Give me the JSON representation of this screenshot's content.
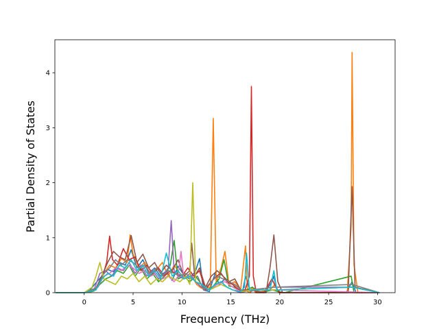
{
  "chart_data": {
    "type": "line",
    "title": "",
    "xlabel": "Frequency (THz)",
    "ylabel": "Partial Density of States",
    "xlim": [
      -3.0,
      31.8
    ],
    "ylim": [
      0,
      4.6
    ],
    "xticks": [
      0,
      5,
      10,
      15,
      20,
      25,
      30
    ],
    "yticks": [
      0,
      1,
      2,
      3,
      4
    ],
    "grid": false,
    "legend": "none",
    "colors": [
      "#1f77b4",
      "#ff7f0e",
      "#2ca02c",
      "#d62728",
      "#9467bd",
      "#8c564b",
      "#e377c2",
      "#7f7f7f",
      "#bcbd22",
      "#17becf"
    ],
    "series": [
      {
        "x": [
          -2.9,
          0.0,
          0.6,
          1.2,
          1.8,
          2.4,
          3.0,
          3.6,
          4.2,
          4.8,
          5.4,
          6.0,
          6.6,
          7.2,
          7.8,
          8.4,
          9.0,
          9.6,
          10.2,
          10.8,
          11.4,
          11.8,
          12.2,
          12.8,
          13.1,
          13.4,
          13.8,
          14.4,
          15.0,
          15.6,
          16.2,
          16.5,
          17.0,
          17.3,
          17.6,
          18.5,
          19.2,
          19.4,
          19.7,
          20.2,
          26.8,
          27.4,
          27.8,
          30.2
        ],
        "y": [
          0,
          0,
          0.05,
          0.18,
          0.3,
          0.42,
          0.38,
          0.55,
          0.5,
          0.78,
          0.45,
          0.6,
          0.35,
          0.45,
          0.3,
          0.4,
          0.22,
          0.48,
          0.32,
          0.25,
          0.4,
          0.62,
          0.05,
          0.02,
          0.2,
          0.35,
          0.15,
          0.25,
          0.18,
          0.08,
          0.02,
          0.3,
          0.01,
          0.05,
          0.01,
          0.0,
          0.2,
          0.3,
          0.05,
          0,
          0,
          0.2,
          0,
          0
        ]
      },
      {
        "x": [
          -2.9,
          0.0,
          0.8,
          1.4,
          2.0,
          2.6,
          3.2,
          3.8,
          4.4,
          4.7,
          5.0,
          5.6,
          6.2,
          6.8,
          7.4,
          8.0,
          8.6,
          9.2,
          9.8,
          10.4,
          11.0,
          11.5,
          12.0,
          12.9,
          13.2,
          13.5,
          14.0,
          14.4,
          14.8,
          15.4,
          16.0,
          16.5,
          16.7,
          17.0,
          17.2,
          17.5,
          19.0,
          19.5,
          19.9,
          26.9,
          27.3,
          27.4,
          27.6,
          28.0,
          30.2
        ],
        "y": [
          0,
          0,
          0.02,
          0.12,
          0.35,
          0.5,
          0.45,
          0.62,
          0.55,
          1.05,
          0.7,
          0.45,
          0.55,
          0.3,
          0.42,
          0.55,
          0.3,
          0.5,
          0.35,
          0.28,
          0.3,
          0.15,
          0.08,
          0.1,
          3.17,
          0.2,
          0.45,
          0.75,
          0.15,
          0.2,
          0.05,
          0.85,
          0.02,
          0.0,
          0.1,
          0.0,
          0.05,
          0.15,
          0.0,
          0,
          1.2,
          4.37,
          0.5,
          0,
          0
        ]
      },
      {
        "x": [
          -2.9,
          0.0,
          1.0,
          1.6,
          2.2,
          2.8,
          3.4,
          4.0,
          4.6,
          5.2,
          5.8,
          6.4,
          7.0,
          7.6,
          8.2,
          8.8,
          9.2,
          9.6,
          10.2,
          10.8,
          11.4,
          12.0,
          12.6,
          13.2,
          13.8,
          14.3,
          14.8,
          15.4,
          16.0,
          16.6,
          17.2,
          18.0,
          19.3,
          19.8,
          20.5,
          27.3,
          27.6,
          30.2
        ],
        "y": [
          0,
          0,
          0.03,
          0.15,
          0.25,
          0.3,
          0.4,
          0.35,
          0.5,
          0.3,
          0.45,
          0.25,
          0.35,
          0.2,
          0.3,
          0.5,
          0.95,
          0.25,
          0.3,
          0.2,
          0.3,
          0.15,
          0.05,
          0.12,
          0.25,
          0.6,
          0.12,
          0.1,
          0.02,
          0.05,
          0.1,
          0.0,
          0.05,
          0.02,
          0,
          0.3,
          0,
          0
        ]
      },
      {
        "x": [
          -2.9,
          0.0,
          1.2,
          1.8,
          2.3,
          2.6,
          2.9,
          3.4,
          4.0,
          4.6,
          5.2,
          5.8,
          6.4,
          7.0,
          7.6,
          8.2,
          8.8,
          9.4,
          10.0,
          10.6,
          11.2,
          11.8,
          12.4,
          13.0,
          13.5,
          14.0,
          14.6,
          15.2,
          15.8,
          16.4,
          16.9,
          17.1,
          17.3,
          17.6,
          18.4,
          19.2,
          19.6,
          20.0,
          27.2,
          27.6,
          30.2
        ],
        "y": [
          0,
          0,
          0.05,
          0.25,
          0.55,
          1.03,
          0.6,
          0.5,
          0.8,
          0.6,
          0.65,
          0.4,
          0.5,
          0.35,
          0.45,
          0.3,
          0.4,
          0.35,
          0.3,
          0.45,
          0.3,
          0.4,
          0.05,
          0.2,
          0.3,
          0.35,
          0.2,
          0.15,
          0.05,
          0.02,
          0.3,
          3.75,
          0.3,
          0.0,
          0.0,
          0.25,
          0.1,
          0,
          0,
          0,
          0
        ]
      },
      {
        "x": [
          -2.9,
          0.0,
          1.0,
          1.6,
          2.2,
          2.8,
          3.4,
          4.0,
          4.6,
          5.2,
          5.8,
          6.4,
          7.0,
          7.6,
          8.2,
          8.6,
          8.9,
          9.2,
          9.6,
          10.2,
          10.8,
          11.4,
          12.0,
          12.8,
          13.4,
          14.0,
          14.6,
          15.2,
          16.0,
          17.0,
          19.5,
          27.4,
          30.2
        ],
        "y": [
          0,
          0,
          0.05,
          0.35,
          0.4,
          0.3,
          0.45,
          0.4,
          0.55,
          0.35,
          0.5,
          0.3,
          0.4,
          0.25,
          0.35,
          0.45,
          1.31,
          0.4,
          0.3,
          0.25,
          0.35,
          0.2,
          0.1,
          0.05,
          0.15,
          0.2,
          0.1,
          0.05,
          0.0,
          0.05,
          0.1,
          0.1,
          0
        ]
      },
      {
        "x": [
          -2.9,
          0.0,
          1.2,
          1.8,
          2.4,
          3.0,
          3.6,
          4.2,
          4.8,
          5.4,
          6.0,
          6.6,
          7.2,
          7.8,
          8.4,
          9.0,
          9.6,
          10.2,
          10.8,
          11.0,
          11.3,
          11.8,
          12.4,
          13.0,
          13.6,
          14.2,
          14.8,
          15.4,
          16.0,
          17.0,
          18.6,
          19.0,
          19.4,
          19.8,
          20.3,
          27.0,
          27.4,
          27.7,
          30.2
        ],
        "y": [
          0,
          0,
          0.08,
          0.3,
          0.55,
          0.75,
          0.65,
          0.6,
          1.04,
          0.55,
          0.7,
          0.45,
          0.55,
          0.35,
          0.5,
          0.4,
          0.6,
          0.3,
          0.4,
          0.9,
          0.3,
          0.45,
          0.1,
          0.3,
          0.4,
          0.3,
          0.2,
          0.25,
          0.05,
          0.05,
          0.0,
          0.45,
          1.05,
          0.2,
          0,
          0,
          1.93,
          0.1,
          0
        ]
      },
      {
        "x": [
          -2.9,
          0.0,
          1.4,
          2.0,
          2.6,
          3.2,
          3.8,
          4.4,
          5.0,
          5.6,
          6.2,
          6.8,
          7.4,
          8.0,
          8.6,
          9.2,
          9.6,
          9.9,
          10.2,
          10.8,
          11.4,
          12.0,
          12.8,
          13.6,
          14.4,
          15.2,
          16.0,
          17.2,
          19.4,
          30.2
        ],
        "y": [
          0,
          0,
          0.1,
          0.3,
          0.35,
          0.45,
          0.4,
          0.5,
          0.45,
          0.35,
          0.4,
          0.3,
          0.35,
          0.25,
          0.3,
          0.2,
          0.3,
          0.75,
          0.25,
          0.3,
          0.2,
          0.15,
          0.05,
          0.15,
          0.2,
          0.1,
          0.02,
          0.05,
          0.05,
          0
        ]
      },
      {
        "x": [
          -2.9,
          0.0,
          1.4,
          2.0,
          2.6,
          3.2,
          3.8,
          4.4,
          5.0,
          5.6,
          6.2,
          6.8,
          7.4,
          8.0,
          8.6,
          9.2,
          9.8,
          10.4,
          11.0,
          11.6,
          12.2,
          13.0,
          13.6,
          14.2,
          14.8,
          15.4,
          16.2,
          17.2,
          19.4,
          27.4,
          30.2
        ],
        "y": [
          0,
          0,
          0.1,
          0.35,
          0.45,
          0.6,
          0.5,
          0.6,
          0.55,
          0.45,
          0.5,
          0.35,
          0.45,
          0.3,
          0.4,
          0.35,
          0.3,
          0.35,
          0.25,
          0.3,
          0.05,
          0.2,
          0.3,
          0.25,
          0.2,
          0.15,
          0.02,
          0.05,
          0.1,
          0.15,
          0
        ]
      },
      {
        "x": [
          -2.9,
          0.0,
          0.8,
          1.2,
          1.6,
          2.0,
          2.6,
          3.2,
          3.8,
          4.4,
          5.0,
          5.6,
          6.2,
          6.8,
          7.4,
          8.0,
          8.6,
          9.2,
          9.8,
          10.4,
          10.8,
          11.1,
          11.4,
          12.0,
          12.8,
          13.4,
          14.0,
          14.6,
          15.2,
          16.0,
          17.2,
          19.4,
          27.4,
          30.2
        ],
        "y": [
          0,
          0,
          0.1,
          0.3,
          0.55,
          0.25,
          0.2,
          0.15,
          0.3,
          0.25,
          0.35,
          0.2,
          0.3,
          0.15,
          0.25,
          0.2,
          0.3,
          0.25,
          0.2,
          0.3,
          0.15,
          2.0,
          0.2,
          0.15,
          0.05,
          0.1,
          0.15,
          0.1,
          0.05,
          0.02,
          0.05,
          0.05,
          0.1,
          0
        ]
      },
      {
        "x": [
          -2.9,
          0.0,
          1.2,
          1.8,
          2.4,
          3.0,
          3.6,
          4.2,
          4.8,
          5.4,
          6.0,
          6.6,
          7.2,
          7.8,
          8.4,
          9.0,
          9.6,
          10.2,
          10.8,
          11.4,
          12.0,
          12.8,
          13.4,
          14.0,
          14.6,
          15.2,
          16.0,
          16.4,
          16.6,
          16.9,
          17.2,
          19.0,
          19.4,
          19.7,
          27.4,
          30.2
        ],
        "y": [
          0,
          0,
          0.05,
          0.25,
          0.35,
          0.3,
          0.5,
          0.45,
          0.6,
          0.4,
          0.5,
          0.3,
          0.4,
          0.25,
          0.72,
          0.3,
          0.4,
          0.25,
          0.3,
          0.2,
          0.15,
          0.05,
          0.15,
          0.2,
          0.1,
          0.05,
          0.02,
          0.1,
          0.72,
          0.05,
          0.05,
          0.05,
          0.4,
          0.05,
          0.1,
          0
        ]
      }
    ]
  }
}
